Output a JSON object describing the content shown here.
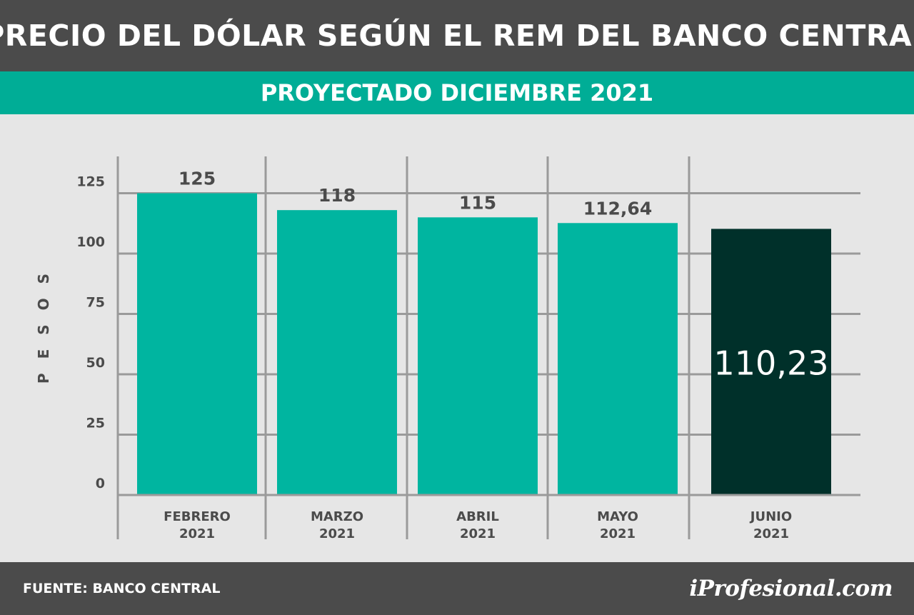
{
  "header": {
    "title": "PRECIO DEL DÓLAR SEGÚN EL REM DEL BANCO CENTRAL"
  },
  "subheader": {
    "text": "PROYECTADO DICIEMBRE 2021"
  },
  "footer": {
    "source": "FUENTE: BANCO CENTRAL",
    "logo": "iProfesional.com"
  },
  "colors": {
    "bar": "#00b5a0",
    "highlight": "#00302a",
    "grid": "#9a9a9a",
    "header": "#4b4b4b",
    "subheader": "#00ad96",
    "background": "#e6e6e6"
  },
  "chart_data": {
    "type": "bar",
    "title": "PRECIO DEL DÓLAR SEGÚN EL REM DEL BANCO CENTRAL",
    "subtitle": "PROYECTADO DICIEMBRE 2021",
    "ylabel": "PESOS",
    "xlabel": "",
    "categories": [
      [
        "FEBRERO",
        "2021"
      ],
      [
        "MARZO",
        "2021"
      ],
      [
        "ABRIL",
        "2021"
      ],
      [
        "MAYO",
        "2021"
      ],
      [
        "JUNIO",
        "2021"
      ]
    ],
    "values": [
      125,
      118,
      115,
      112.64,
      110.23
    ],
    "value_labels": [
      "125",
      "118",
      "115",
      "112,64",
      "110,23"
    ],
    "highlight_index": 4,
    "ylim": [
      0,
      125
    ],
    "yticks": [
      0,
      25,
      50,
      75,
      100,
      125
    ],
    "grid": true
  }
}
